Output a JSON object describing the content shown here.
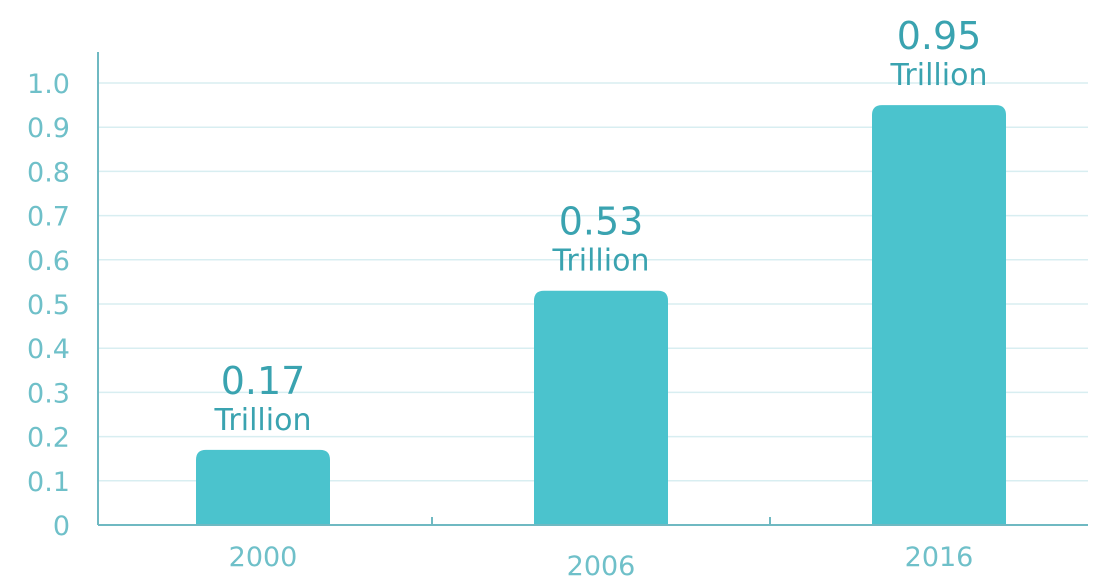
{
  "chart_data": {
    "type": "bar",
    "categories": [
      "2000",
      "2006",
      "2016"
    ],
    "values": [
      0.17,
      0.53,
      0.95
    ],
    "value_labels": [
      "0.17",
      "0.53",
      "0.95"
    ],
    "value_unit": "Trillion",
    "y_ticks": [
      "0",
      "0.1",
      "0.2",
      "0.3",
      "0.4",
      "0.5",
      "0.6",
      "0.7",
      "0.8",
      "0.9",
      "1.0"
    ],
    "ylim": [
      0,
      1.0
    ],
    "grid": true,
    "bar_color": "#4bc3cd",
    "text_color": "#3aa3b0",
    "axis_color": "#6fb9c2",
    "grid_color": "#d8eef1"
  }
}
